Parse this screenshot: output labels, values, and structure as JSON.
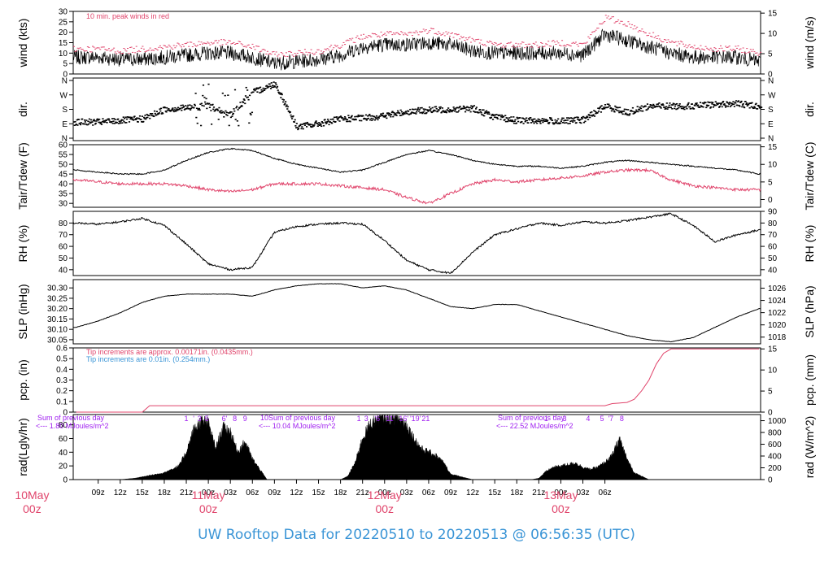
{
  "footer": {
    "title": "UW Rooftop Data for 20220510  to  20220513 @ 06:56:35  (UTC)"
  },
  "colors": {
    "series_main": "#000000",
    "accent_red": "#e0446b",
    "accent_blue": "#3b95d6",
    "accent_purple": "#a020f0"
  },
  "time_axis": {
    "hour_ticks": [
      "09z",
      "12z",
      "15z",
      "18z",
      "21z",
      "00z",
      "03z",
      "06z",
      "09z",
      "12z",
      "15z",
      "18z",
      "21z",
      "00z",
      "03z",
      "06z",
      "09z",
      "12z",
      "15z",
      "18z",
      "21z",
      "00z",
      "03z",
      "06z"
    ],
    "day_labels": [
      {
        "date": "10May",
        "hour": "00z"
      },
      {
        "date": "11May",
        "hour": "00z"
      },
      {
        "date": "12May",
        "hour": "00z"
      },
      {
        "date": "13May",
        "hour": "00z"
      }
    ]
  },
  "chart_data": [
    {
      "type": "line",
      "ylabel": "wind (kts)",
      "ylabel_right": "wind (m/s)",
      "ylim": [
        0,
        30
      ],
      "yticks": [
        "0",
        "5",
        "10",
        "15",
        "20",
        "25",
        "30"
      ],
      "ylim_right": [
        0,
        15.43
      ],
      "yticks_right": [
        "0",
        "5",
        "10",
        "15"
      ],
      "annotation": "10 min. peak winds in red",
      "series": [
        {
          "x_hours": [
            6,
            9,
            12,
            15,
            18,
            21,
            24,
            27,
            30,
            33,
            36,
            39,
            42,
            45,
            48,
            51,
            54,
            57,
            60,
            63,
            66,
            69,
            72,
            75,
            78,
            81,
            84,
            87,
            90,
            93,
            96,
            99
          ],
          "values": [
            8,
            8,
            7,
            7,
            8,
            9,
            10,
            10,
            8,
            5,
            6,
            7,
            9,
            13,
            14,
            14,
            15,
            14,
            11,
            10,
            10,
            10,
            10,
            9,
            19,
            16,
            13,
            10,
            8,
            8,
            8,
            6
          ]
        },
        {
          "x_hours": [
            6,
            9,
            12,
            15,
            18,
            21,
            24,
            27,
            30,
            33,
            36,
            39,
            42,
            45,
            48,
            51,
            54,
            57,
            60,
            63,
            66,
            69,
            72,
            75,
            78,
            81,
            84,
            87,
            90,
            93,
            96,
            99
          ],
          "values": [
            12,
            12,
            11,
            12,
            13,
            14,
            15,
            15,
            13,
            9,
            10,
            11,
            14,
            18,
            19,
            19,
            21,
            19,
            16,
            14,
            14,
            14,
            15,
            14,
            27,
            24,
            19,
            15,
            13,
            12,
            12,
            10
          ]
        }
      ]
    },
    {
      "type": "scatter",
      "ylabel": "dir.",
      "ylabel_right": "dir.",
      "ylim": [
        0,
        360
      ],
      "yticks": [
        "N",
        "E",
        "S",
        "W",
        "N"
      ],
      "yticks_right": [
        "N",
        "E",
        "S",
        "W",
        "N"
      ],
      "series": [
        {
          "x_hours": [
            6,
            9,
            12,
            15,
            18,
            21,
            24,
            27,
            30,
            33,
            36,
            39,
            42,
            45,
            48,
            51,
            54,
            57,
            60,
            63,
            66,
            69,
            72,
            75,
            78,
            81,
            84,
            87,
            90,
            93,
            96,
            99
          ],
          "values": [
            100,
            100,
            110,
            120,
            180,
            190,
            200,
            150,
            285,
            340,
            70,
            90,
            120,
            125,
            140,
            165,
            175,
            180,
            185,
            130,
            110,
            110,
            105,
            115,
            200,
            160,
            200,
            200,
            200,
            210,
            215,
            200
          ]
        }
      ]
    },
    {
      "type": "line",
      "ylabel": "Tair/Tdew (F)",
      "ylabel_right": "Tair/Tdew (C)",
      "ylim": [
        28,
        60
      ],
      "yticks": [
        "30",
        "35",
        "40",
        "45",
        "50",
        "55",
        "60"
      ],
      "ylim_right": [
        -2.2,
        15.6
      ],
      "yticks_right": [
        "0",
        "5",
        "10",
        "15"
      ],
      "series": [
        {
          "x_hours": [
            6,
            9,
            12,
            15,
            18,
            21,
            24,
            27,
            30,
            33,
            36,
            39,
            42,
            45,
            48,
            51,
            54,
            57,
            60,
            63,
            66,
            69,
            72,
            75,
            78,
            81,
            84,
            87,
            90,
            93,
            96,
            99
          ],
          "values": [
            47,
            46,
            45,
            45,
            47,
            52,
            56,
            58,
            57,
            53,
            50,
            48,
            46,
            47,
            51,
            55,
            57,
            55,
            52,
            50,
            49,
            49,
            48,
            49,
            51,
            52,
            51,
            50,
            49,
            48,
            47,
            45
          ]
        },
        {
          "x_hours": [
            6,
            9,
            12,
            15,
            18,
            21,
            24,
            27,
            30,
            33,
            36,
            39,
            42,
            45,
            48,
            51,
            54,
            57,
            60,
            63,
            66,
            69,
            72,
            75,
            78,
            81,
            84,
            87,
            90,
            93,
            96,
            99
          ],
          "values": [
            42,
            41,
            40,
            40,
            40,
            39,
            37,
            36,
            37,
            40,
            40,
            40,
            39,
            38,
            37,
            33,
            30,
            35,
            40,
            42,
            41,
            42,
            43,
            44,
            46,
            47,
            47,
            42,
            39,
            38,
            37,
            37
          ]
        }
      ]
    },
    {
      "type": "line",
      "ylabel": "RH (%)",
      "ylabel_right": "RH (%)",
      "ylim": [
        35,
        90
      ],
      "yticks": [
        "40",
        "50",
        "60",
        "70",
        "80"
      ],
      "ylim_right": [
        35,
        90
      ],
      "yticks_right": [
        "40",
        "50",
        "60",
        "70",
        "80",
        "90"
      ],
      "series": [
        {
          "x_hours": [
            6,
            9,
            12,
            15,
            18,
            21,
            24,
            27,
            30,
            33,
            36,
            39,
            42,
            45,
            48,
            51,
            54,
            57,
            60,
            63,
            66,
            69,
            72,
            75,
            78,
            81,
            84,
            87,
            90,
            93,
            96,
            99
          ],
          "values": [
            80,
            79,
            81,
            84,
            78,
            62,
            45,
            40,
            42,
            72,
            77,
            79,
            80,
            79,
            65,
            48,
            40,
            37,
            55,
            70,
            75,
            80,
            78,
            81,
            80,
            82,
            85,
            88,
            78,
            64,
            70,
            74
          ]
        }
      ]
    },
    {
      "type": "line",
      "ylabel": "SLP (inHg)",
      "ylabel_right": "SLP (hPa)",
      "ylim": [
        30.03,
        30.34
      ],
      "yticks": [
        "30.05",
        "30.10",
        "30.15",
        "30.20",
        "30.25",
        "30.30"
      ],
      "ylim_right": [
        1016.9,
        1027.4
      ],
      "yticks_right": [
        "1018",
        "1020",
        "1022",
        "1024",
        "1026"
      ],
      "series": [
        {
          "x_hours": [
            6,
            9,
            12,
            15,
            18,
            21,
            24,
            27,
            30,
            33,
            36,
            39,
            42,
            45,
            48,
            51,
            54,
            57,
            60,
            63,
            66,
            69,
            72,
            75,
            78,
            81,
            84,
            87,
            90,
            93,
            96,
            99
          ],
          "values": [
            30.11,
            30.14,
            30.18,
            30.23,
            30.26,
            30.27,
            30.27,
            30.27,
            30.26,
            30.29,
            30.31,
            30.32,
            30.32,
            30.3,
            30.31,
            30.29,
            30.25,
            30.21,
            30.2,
            30.22,
            30.22,
            30.19,
            30.16,
            30.13,
            30.1,
            30.07,
            30.05,
            30.04,
            30.06,
            30.11,
            30.16,
            30.2
          ]
        }
      ]
    },
    {
      "type": "line",
      "ylabel": "pcp. (in)",
      "ylabel_right": "pcp. (mm)",
      "ylim": [
        0,
        0.6
      ],
      "yticks": [
        "0",
        "0.1",
        "0.2",
        "0.3",
        "0.4",
        "0.5",
        "0.6"
      ],
      "ylim_right": [
        0,
        15.24
      ],
      "yticks_right": [
        "0",
        "5",
        "10",
        "15"
      ],
      "annotations": [
        {
          "text": "Tip increments are approx. 0.00171in. (0.0435mm.)",
          "color": "#e0446b"
        },
        {
          "text": "Tip increments are 0.01in. (0.254mm.)",
          "color": "#3b95d6"
        }
      ],
      "series": [
        {
          "x_hours": [
            6,
            15,
            16,
            20,
            48,
            72,
            78,
            79,
            81,
            82,
            83,
            84,
            85,
            86,
            87,
            99
          ],
          "values": [
            0,
            0,
            0.06,
            0.06,
            0.06,
            0.06,
            0.06,
            0.08,
            0.09,
            0.12,
            0.2,
            0.3,
            0.45,
            0.55,
            0.59,
            0.59
          ]
        }
      ]
    },
    {
      "type": "area",
      "ylabel": "rad(Lgly/hr)",
      "ylabel_right": "rad (W/m^2)",
      "ylim": [
        0,
        95
      ],
      "yticks": [
        "0",
        "20",
        "40",
        "60",
        "80"
      ],
      "ylim_right": [
        0,
        1104
      ],
      "yticks_right": [
        "0",
        "200",
        "400",
        "600",
        "800",
        "1000"
      ],
      "daily_notes": [
        {
          "label": "Sum of previous day",
          "value": "<--- 1.80 MJoules/m^2"
        },
        {
          "label": "10Sum of previous day",
          "value": "<--- 10.04 MJoules/m^2"
        },
        {
          "label": "Sum of previous day",
          "value": "<--- 22.52 MJoules/m^2"
        }
      ],
      "hour_marks": [
        {
          "x_hours": 21,
          "text": "1"
        },
        {
          "x_hours": 22,
          "text": "'"
        },
        {
          "x_hours": 22.8,
          "text": "3"
        },
        {
          "x_hours": 23.8,
          "text": "5"
        },
        {
          "x_hours": 26.2,
          "text": "6'"
        },
        {
          "x_hours": 27.6,
          "text": "8"
        },
        {
          "x_hours": 29,
          "text": "9"
        },
        {
          "x_hours": 44.5,
          "text": "1"
        },
        {
          "x_hours": 45.5,
          "text": "3"
        },
        {
          "x_hours": 47,
          "text": "'6"
        },
        {
          "x_hours": 48.7,
          "text": "'11'"
        },
        {
          "x_hours": 50.6,
          "text": "16'"
        },
        {
          "x_hours": 52.2,
          "text": "'19'"
        },
        {
          "x_hours": 53.6,
          "text": "21"
        },
        {
          "x_hours": 70,
          "text": "1"
        },
        {
          "x_hours": 71,
          "text": "'"
        },
        {
          "x_hours": 72.5,
          "text": "3"
        },
        {
          "x_hours": 75.7,
          "text": "4"
        },
        {
          "x_hours": 77.6,
          "text": "5"
        },
        {
          "x_hours": 78.8,
          "text": "'7"
        },
        {
          "x_hours": 80.3,
          "text": "8"
        }
      ],
      "series": [
        {
          "x_hours": [
            6,
            12,
            14,
            16,
            18,
            20,
            21,
            22,
            23,
            24,
            25,
            26,
            27,
            28,
            29,
            30,
            31,
            32,
            36,
            38,
            40,
            42,
            43,
            44,
            45,
            46,
            47,
            48,
            49,
            50,
            51,
            52,
            53,
            54,
            55,
            56,
            57,
            60,
            62,
            64,
            66,
            68,
            69,
            70,
            71,
            72,
            73,
            74,
            75,
            76,
            77,
            78,
            79,
            80,
            81,
            82,
            84,
            99
          ],
          "values": [
            0,
            0,
            2,
            6,
            10,
            20,
            40,
            72,
            85,
            82,
            45,
            76,
            70,
            40,
            55,
            30,
            15,
            0,
            0,
            0,
            0,
            0,
            5,
            25,
            60,
            80,
            88,
            92,
            90,
            88,
            80,
            60,
            45,
            40,
            35,
            25,
            8,
            0,
            0,
            0,
            0,
            0,
            2,
            12,
            18,
            20,
            22,
            24,
            18,
            15,
            18,
            25,
            35,
            60,
            30,
            10,
            0,
            0
          ]
        }
      ]
    }
  ]
}
